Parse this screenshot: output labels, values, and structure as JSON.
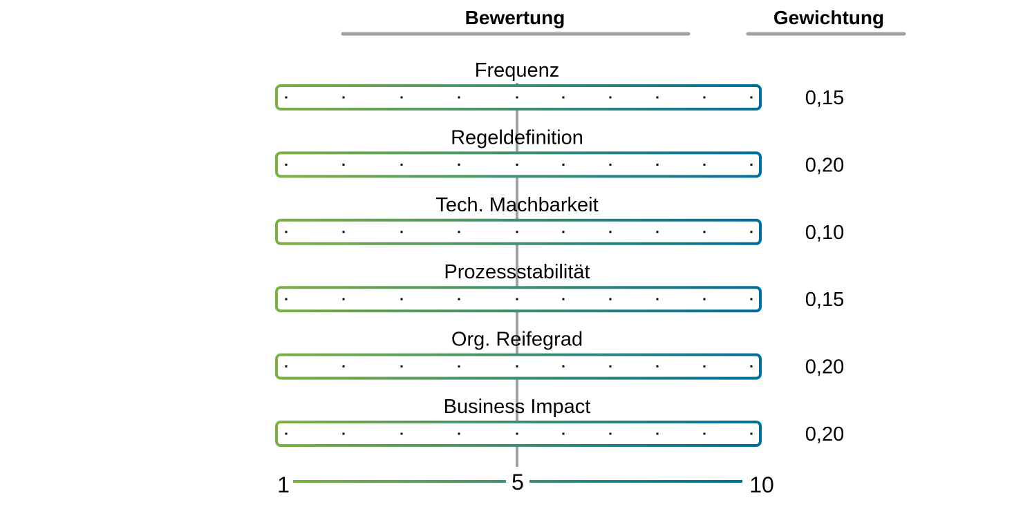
{
  "headers": {
    "rating": "Bewertung",
    "weighting": "Gewichtung"
  },
  "criteria": [
    {
      "label": "Frequenz",
      "weight": "0,15"
    },
    {
      "label": "Regeldefinition",
      "weight": "0,20"
    },
    {
      "label": "Tech. Machbarkeit",
      "weight": "0,10"
    },
    {
      "label": "Prozessstabilität",
      "weight": "0,15"
    },
    {
      "label": "Org. Reifegrad",
      "weight": "0,20"
    },
    {
      "label": "Business Impact",
      "weight": "0,20"
    }
  ],
  "scale": {
    "min_label": "1",
    "mid_label": "5",
    "max_label": "10",
    "points": 10
  },
  "colors": {
    "gradient_start": "#7db041",
    "gradient_end": "#006f9d",
    "rule_gray": "#a0a0a0",
    "text": "#000000"
  }
}
